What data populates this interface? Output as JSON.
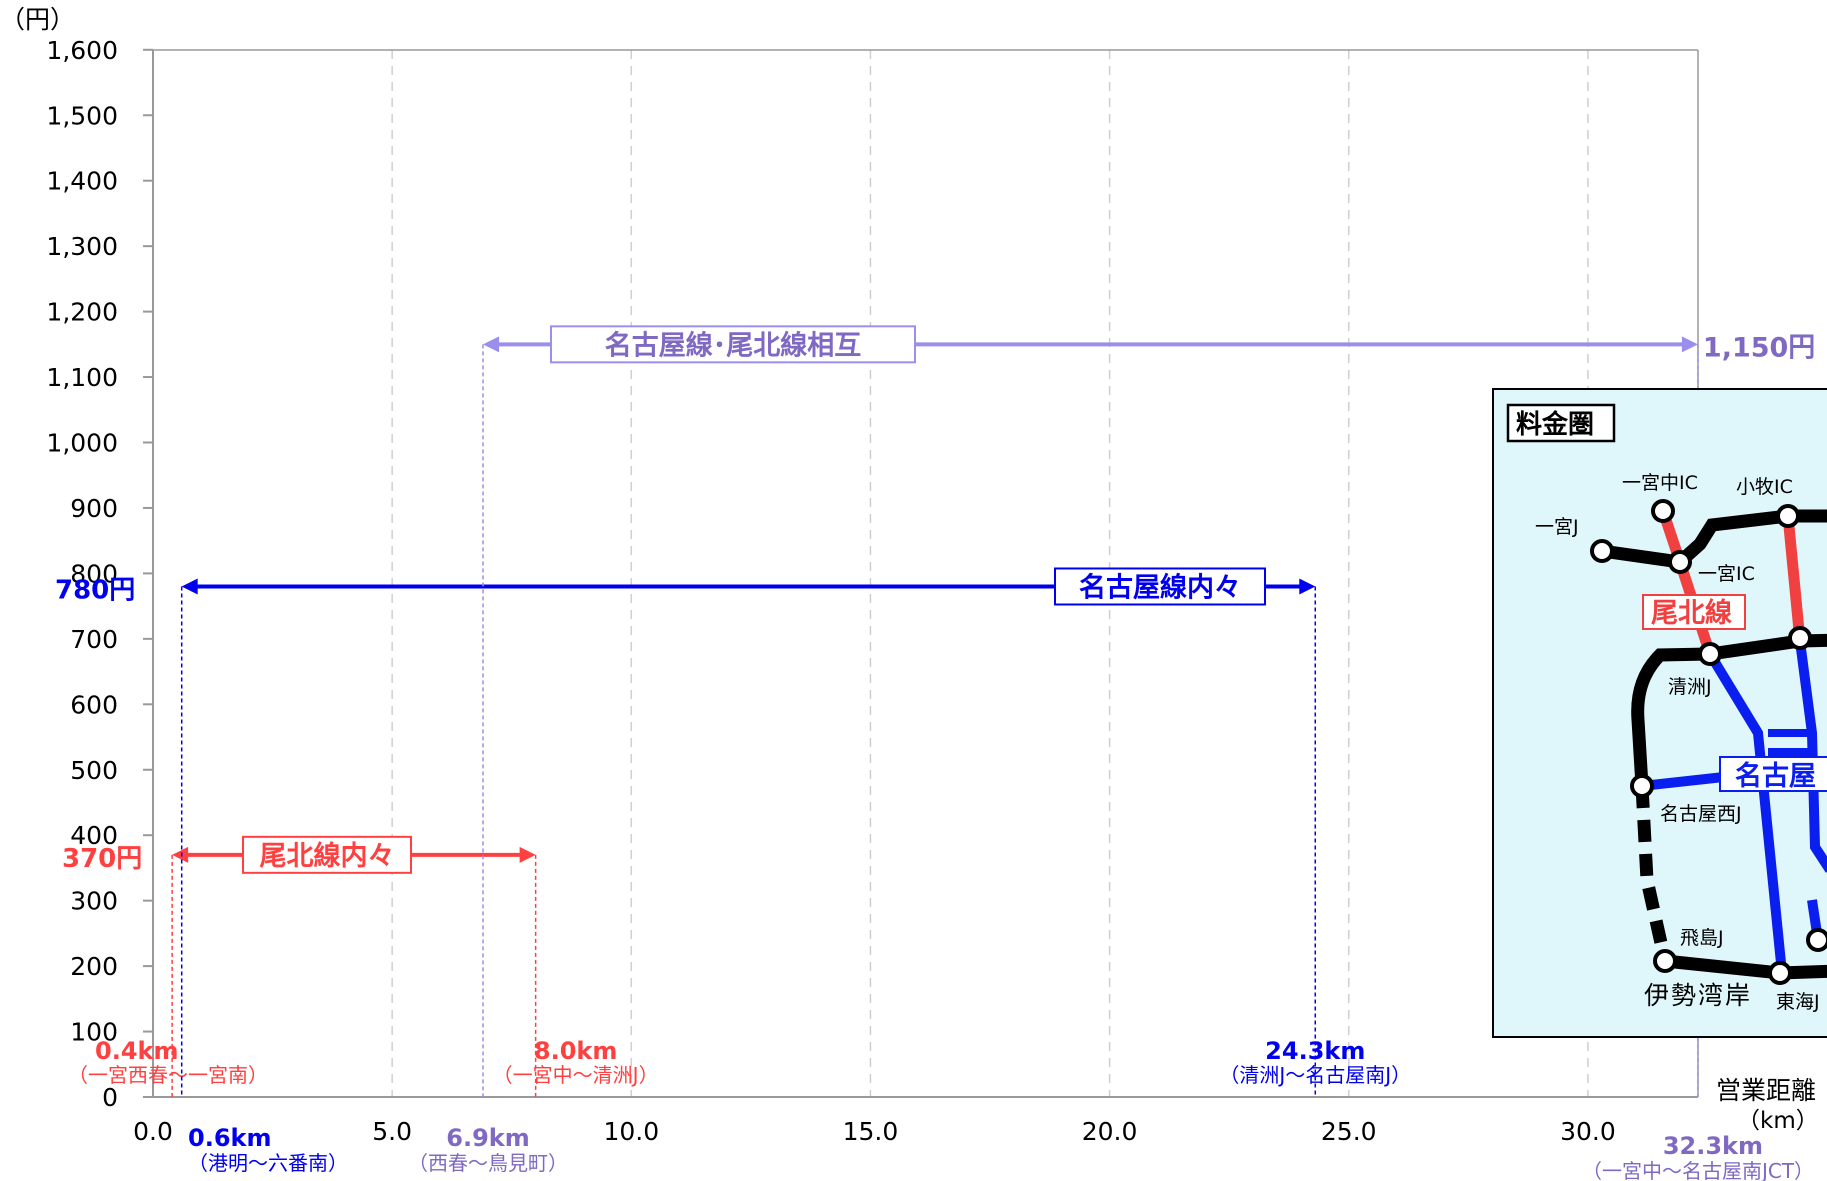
{
  "chart_data": {
    "type": "range",
    "yunit": "（円）",
    "xunit_line1": "営業距離",
    "xunit_line2": "（km）",
    "ylim": [
      0,
      1600
    ],
    "xlim": [
      0,
      32.3
    ],
    "yticks": [
      0,
      100,
      200,
      300,
      400,
      500,
      600,
      700,
      800,
      900,
      1000,
      1100,
      1200,
      1300,
      1400,
      1500,
      1600
    ],
    "ytick_labels": [
      "0",
      "100",
      "200",
      "300",
      "400",
      "500",
      "600",
      "700",
      "800",
      "900",
      "1,000",
      "1,100",
      "1,200",
      "1,300",
      "1,400",
      "1,500",
      "1,600"
    ],
    "xticks": [
      0,
      5,
      10,
      15,
      20,
      25,
      30
    ],
    "xtick_labels": [
      "0.0",
      "5.0",
      "10.0",
      "15.0",
      "20.0",
      "25.0",
      "30.0"
    ],
    "grid": "vertical dashed",
    "series": [
      {
        "name": "尾北線内々",
        "color": "#ff4040",
        "price": 370,
        "price_label": "370円",
        "min_km": 0.4,
        "max_km": 8.0,
        "min_label": "0.4km",
        "min_route": "（一宮西春～一宮南）",
        "max_label": "8.0km",
        "max_route": "（一宮中～清洲J）"
      },
      {
        "name": "名古屋線内々",
        "color": "#0000ee",
        "price": 780,
        "price_label": "780円",
        "min_km": 0.6,
        "max_km": 24.3,
        "min_label": "0.6km",
        "min_route": "（港明～六番南）",
        "max_label": "24.3km",
        "max_route": "（清洲J～名古屋南J）"
      },
      {
        "name": "名古屋線･尾北線相互",
        "color": "#9b8fee",
        "label_color": "#7f69c3",
        "price": 1150,
        "price_label": "1,150円",
        "min_km": 6.9,
        "max_km": 32.3,
        "min_label": "6.9km",
        "min_route": "（西春～鳥見町）",
        "max_label": "32.3km",
        "max_route": "（一宮中～名古屋南JCT）"
      }
    ]
  },
  "inset_map": {
    "title": "料金圏",
    "line_red_label": "尾北線",
    "line_blue_label": "名古屋",
    "nodes": [
      "一宮中IC",
      "小牧IC",
      "一宮J",
      "一宮IC",
      "清洲J",
      "名古屋西J",
      "飛島J",
      "伊勢湾岸",
      "東海J"
    ],
    "colors": {
      "background": "#dff6fa",
      "red": "#f04040",
      "blue": "#0a1ef0",
      "black": "#000000"
    }
  }
}
